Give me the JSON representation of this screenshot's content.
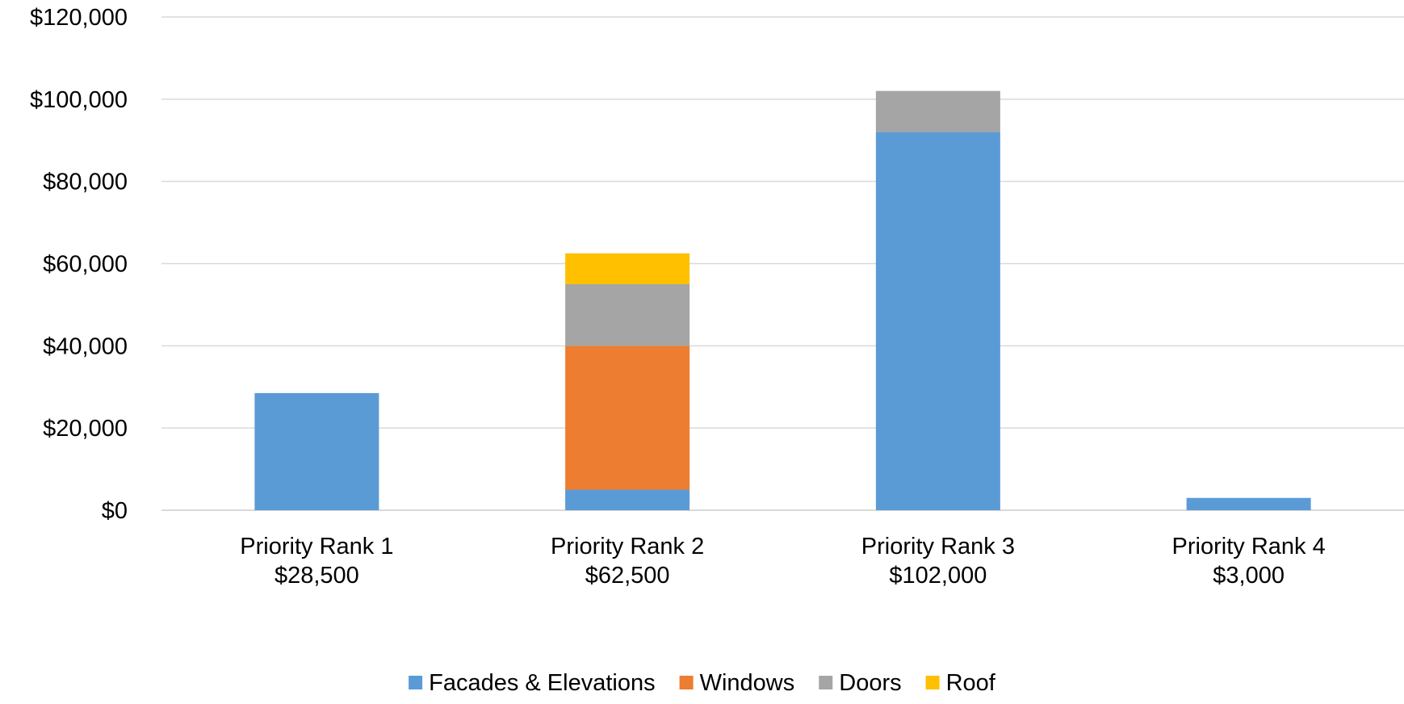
{
  "chart_data": {
    "type": "bar",
    "stacked": true,
    "categories": [
      "Priority Rank 1",
      "Priority Rank 2",
      "Priority Rank 3",
      "Priority Rank 4"
    ],
    "category_totals": [
      "$28,500",
      "$62,500",
      "$102,000",
      "$3,000"
    ],
    "series": [
      {
        "name": "Facades & Elevations",
        "color": "#5B9BD5",
        "values": [
          28500,
          5000,
          92000,
          3000
        ]
      },
      {
        "name": "Windows",
        "color": "#ED7D31",
        "values": [
          0,
          35000,
          0,
          0
        ]
      },
      {
        "name": "Doors",
        "color": "#A5A5A5",
        "values": [
          0,
          15000,
          10000,
          0
        ]
      },
      {
        "name": "Roof",
        "color": "#FFC000",
        "values": [
          0,
          7500,
          0,
          0
        ]
      }
    ],
    "ylim": [
      0,
      120000
    ],
    "y_ticks": [
      0,
      20000,
      40000,
      60000,
      80000,
      100000,
      120000
    ],
    "y_tick_labels": [
      "$0",
      "$20,000",
      "$40,000",
      "$60,000",
      "$80,000",
      "$100,000",
      "$120,000"
    ],
    "grid": true,
    "legend_position": "bottom",
    "title": "",
    "xlabel": "",
    "ylabel": ""
  }
}
